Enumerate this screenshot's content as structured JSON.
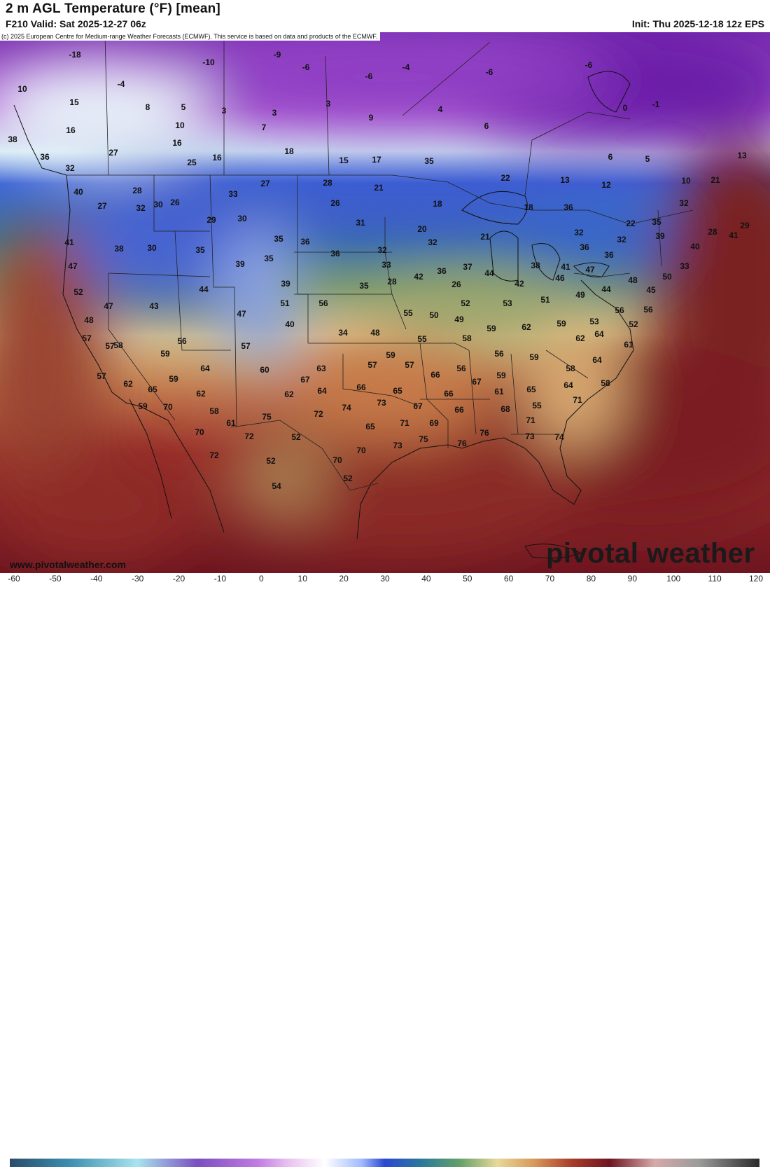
{
  "header": {
    "title": "2 m AGL Temperature (°F) [mean]",
    "valid": "F210 Valid: Sat 2025-12-27 06z",
    "init": "Init: Thu 2025-12-18 12z EPS",
    "copyright": "(c) 2025 European Centre for Medium-range Weather Forecasts (ECMWF). This service is based on data and products of the ECMWF."
  },
  "footer": {
    "site": "www.pivotalweather.com",
    "logo": "pivotal weather"
  },
  "legend": {
    "ticks": [
      "-60",
      "-50",
      "-40",
      "-30",
      "-20",
      "-10",
      "0",
      "10",
      "20",
      "30",
      "40",
      "50",
      "60",
      "70",
      "80",
      "90",
      "100",
      "110",
      "120"
    ]
  },
  "map_values": [
    "-18",
    "-10",
    "-9",
    "-6",
    "-6",
    "-4",
    "-6",
    "-6",
    "-1",
    "10",
    "15",
    "-4",
    "8",
    "5",
    "3",
    "3",
    "3",
    "9",
    "4",
    "0",
    "16",
    "10",
    "7",
    "6",
    "38",
    "16",
    "5",
    "13",
    "6",
    "36",
    "27",
    "25",
    "16",
    "18",
    "15",
    "17",
    "35",
    "32",
    "28",
    "33",
    "27",
    "28",
    "21",
    "22",
    "13",
    "12",
    "10",
    "21",
    "40",
    "26",
    "30",
    "26",
    "18",
    "18",
    "36",
    "32",
    "27",
    "32",
    "31",
    "29",
    "20",
    "22",
    "35",
    "30",
    "32",
    "28",
    "29",
    "38",
    "30",
    "35",
    "32",
    "21",
    "32",
    "39",
    "41",
    "35",
    "36",
    "36",
    "32",
    "37",
    "38",
    "36",
    "36",
    "41",
    "40",
    "33",
    "39",
    "35",
    "33",
    "42",
    "36",
    "44",
    "42",
    "41",
    "47",
    "47",
    "44",
    "39",
    "35",
    "28",
    "26",
    "46",
    "48",
    "45",
    "50",
    "52",
    "56",
    "51",
    "52",
    "53",
    "51",
    "49",
    "44",
    "47",
    "43",
    "48",
    "47",
    "40",
    "34",
    "48",
    "55",
    "50",
    "49",
    "59",
    "62",
    "59",
    "53",
    "56",
    "56",
    "52",
    "57",
    "57",
    "56",
    "57",
    "55",
    "58",
    "56",
    "59",
    "62",
    "64",
    "61",
    "64",
    "60",
    "59",
    "59",
    "57",
    "58",
    "63",
    "57",
    "59",
    "57",
    "56",
    "59",
    "58",
    "64",
    "62",
    "65",
    "62",
    "67",
    "62",
    "64",
    "66",
    "65",
    "66",
    "67",
    "65",
    "61",
    "64",
    "58",
    "59",
    "70",
    "58",
    "55",
    "68",
    "71",
    "61",
    "75",
    "74",
    "73",
    "67",
    "66",
    "72",
    "66",
    "65",
    "71",
    "69",
    "71",
    "70",
    "72",
    "52",
    "70",
    "73",
    "75",
    "76",
    "76",
    "73",
    "74",
    "72",
    "52",
    "54",
    "70",
    "52"
  ]
}
